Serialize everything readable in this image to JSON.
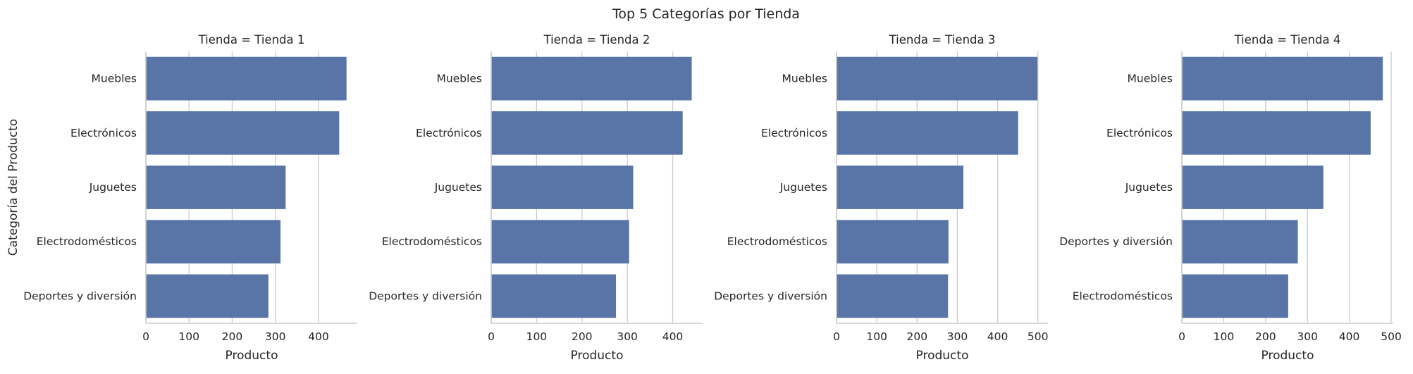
{
  "figure": {
    "title": "Top 5 Categorías por Tienda"
  },
  "chart_data": [
    {
      "type": "bar",
      "orientation": "horizontal",
      "title": "Tienda = Tienda 1",
      "xlabel": "Producto",
      "ylabel": "Categoría del Producto",
      "categories": [
        "Muebles",
        "Electrónicos",
        "Juguetes",
        "Electrodomésticos",
        "Deportes y diversión"
      ],
      "values": [
        465,
        448,
        324,
        312,
        284
      ],
      "xlim": [
        0,
        490
      ],
      "xticks": [
        0,
        100,
        200,
        300,
        400
      ],
      "grid": true,
      "bar_color": "#5975a8"
    },
    {
      "type": "bar",
      "orientation": "horizontal",
      "title": "Tienda = Tienda 2",
      "xlabel": "Producto",
      "ylabel": "",
      "categories": [
        "Muebles",
        "Electrónicos",
        "Juguetes",
        "Electrodomésticos",
        "Deportes y diversión"
      ],
      "values": [
        442,
        422,
        313,
        304,
        275
      ],
      "xlim": [
        0,
        466
      ],
      "xticks": [
        0,
        100,
        200,
        300,
        400
      ],
      "grid": true,
      "bar_color": "#5975a8"
    },
    {
      "type": "bar",
      "orientation": "horizontal",
      "title": "Tienda = Tienda 3",
      "xlabel": "Producto",
      "ylabel": "",
      "categories": [
        "Muebles",
        "Electrónicos",
        "Juguetes",
        "Electrodomésticos",
        "Deportes y diversión"
      ],
      "values": [
        499,
        451,
        315,
        278,
        277
      ],
      "xlim": [
        0,
        525
      ],
      "xticks": [
        0,
        100,
        200,
        300,
        400,
        500
      ],
      "grid": true,
      "bar_color": "#5975a8"
    },
    {
      "type": "bar",
      "orientation": "horizontal",
      "title": "Tienda = Tienda 4",
      "xlabel": "Producto",
      "ylabel": "",
      "categories": [
        "Muebles",
        "Electrónicos",
        "Juguetes",
        "Deportes y diversión",
        "Electrodomésticos"
      ],
      "values": [
        480,
        451,
        338,
        277,
        254
      ],
      "xlim": [
        0,
        505
      ],
      "xticks": [
        0,
        100,
        200,
        300,
        400,
        500
      ],
      "grid": true,
      "bar_color": "#5975a8"
    }
  ]
}
